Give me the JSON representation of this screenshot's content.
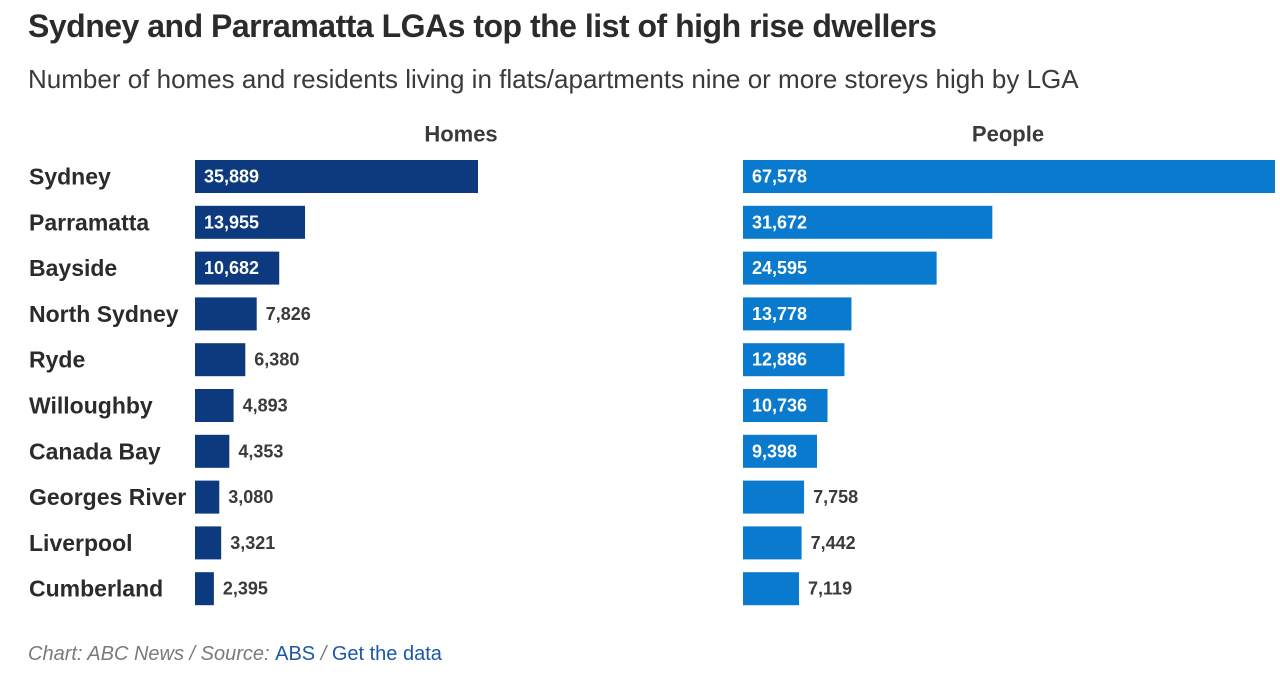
{
  "title": "Sydney and Parramatta LGAs top the list of high rise dwellers",
  "subtitle": "Number of homes and residents living in flats/apartments nine or more storeys high by LGA",
  "footer": {
    "chart_credit": "Chart: ABC News",
    "sep1": " / ",
    "source_label": "Source: ",
    "source_link": "ABS",
    "sep2": " / ",
    "data_link": "Get the data"
  },
  "chart_data": {
    "type": "bar",
    "orientation": "horizontal",
    "categories": [
      "Sydney",
      "Parramatta",
      "Bayside",
      "North Sydney",
      "Ryde",
      "Willoughby",
      "Canada Bay",
      "Georges River",
      "Liverpool",
      "Cumberland"
    ],
    "series": [
      {
        "name": "Homes",
        "color": "#0d3a7f",
        "values": [
          35889,
          13955,
          10682,
          7826,
          6380,
          4893,
          4353,
          3080,
          3321,
          2395
        ],
        "labels": [
          "35,889",
          "13,955",
          "10,682",
          "7,826",
          "6,380",
          "4,893",
          "4,353",
          "3,080",
          "3,321",
          "2,395"
        ]
      },
      {
        "name": "People",
        "color": "#0a7ace",
        "values": [
          67578,
          31672,
          24595,
          13778,
          12886,
          10736,
          9398,
          7758,
          7442,
          7119
        ],
        "labels": [
          "67,578",
          "31,672",
          "24,595",
          "13,778",
          "12,886",
          "10,736",
          "9,398",
          "7,758",
          "7,442",
          "7,119"
        ]
      }
    ],
    "layout": "small-multiples",
    "legend": "none",
    "grid": false
  }
}
